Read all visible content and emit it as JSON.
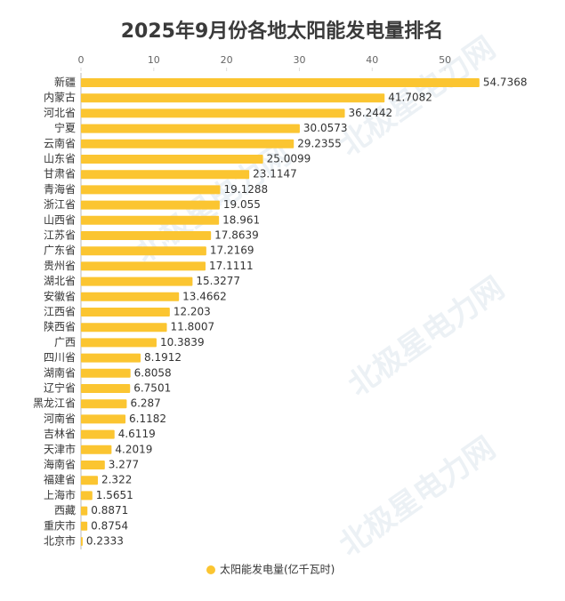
{
  "watermark": "北极星电力网",
  "chart_data": {
    "type": "bar",
    "orientation": "horizontal",
    "title": "2025年9月份各地太阳能发电量排名",
    "categories": [
      "新疆",
      "内蒙古",
      "河北省",
      "宁夏",
      "云南省",
      "山东省",
      "甘肃省",
      "青海省",
      "浙江省",
      "山西省",
      "江苏省",
      "广东省",
      "贵州省",
      "湖北省",
      "安徽省",
      "江西省",
      "陕西省",
      "广西",
      "四川省",
      "湖南省",
      "辽宁省",
      "黑龙江省",
      "河南省",
      "吉林省",
      "天津市",
      "海南省",
      "福建省",
      "上海市",
      "西藏",
      "重庆市",
      "北京市"
    ],
    "series": [
      {
        "name": "太阳能发电量(亿千瓦时)",
        "color": "#fbc531",
        "values": [
          54.7368,
          41.7082,
          36.2442,
          30.0573,
          29.2355,
          25.0099,
          23.1147,
          19.1288,
          19.055,
          18.961,
          17.8639,
          17.2169,
          17.1111,
          15.3277,
          13.4662,
          12.203,
          11.8007,
          10.3839,
          8.1912,
          6.8058,
          6.7501,
          6.287,
          6.1182,
          4.6119,
          4.2019,
          3.277,
          2.322,
          1.5651,
          0.8871,
          0.8754,
          0.2333
        ]
      }
    ],
    "xlim": [
      0,
      55
    ],
    "xticks": [
      0,
      10,
      20,
      30,
      40,
      50
    ],
    "grid": false,
    "legend": "bottom"
  }
}
